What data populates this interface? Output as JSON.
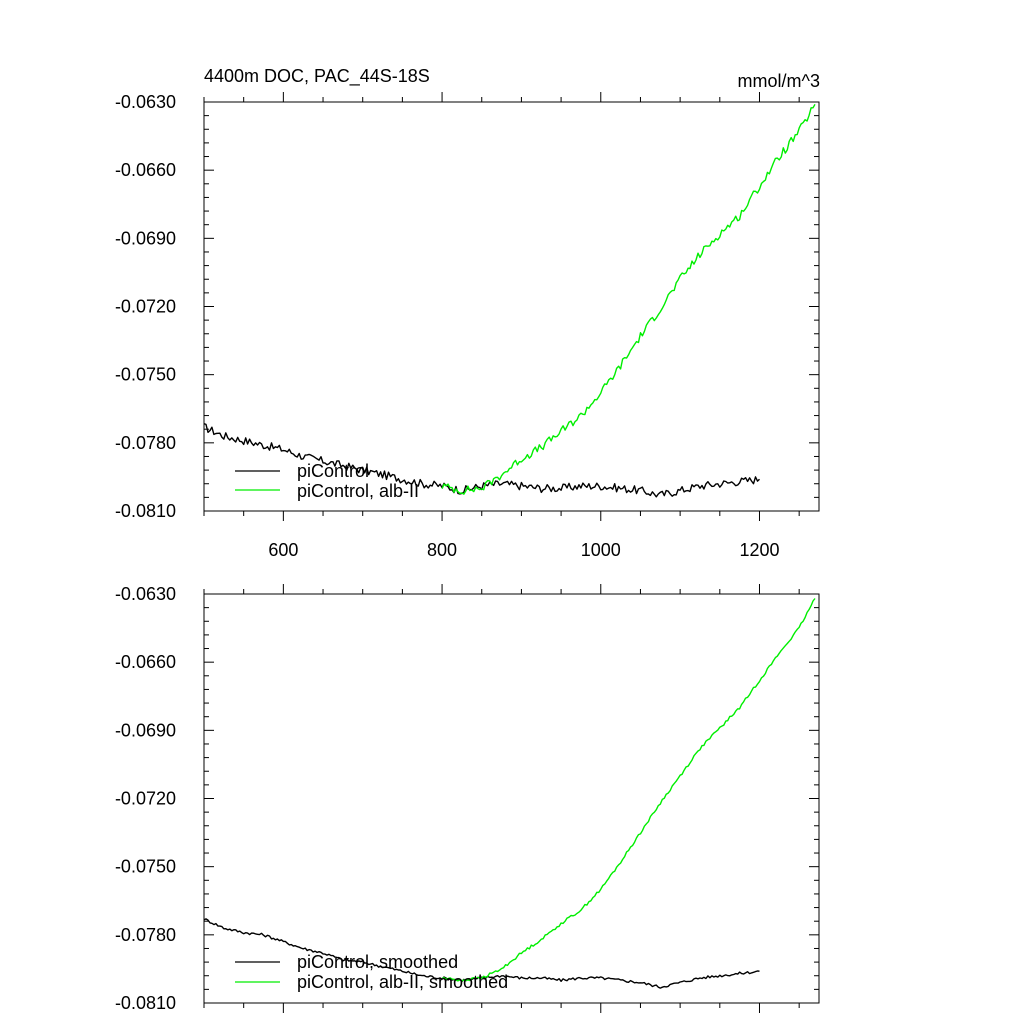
{
  "colors": {
    "control": "#000000",
    "alb": "#00ee00",
    "background": "#ffffff"
  },
  "chart_data": [
    {
      "type": "line",
      "title": "4400m DOC, PAC_44S-18S",
      "units": "mmol/m^3",
      "xlim": [
        500,
        1275
      ],
      "ylim": [
        -0.081,
        -0.063
      ],
      "x_ticks": [
        "600",
        "800",
        "1000",
        "1200"
      ],
      "y_ticks": [
        "-0.0630",
        "-0.0660",
        "-0.0690",
        "-0.0720",
        "-0.0750",
        "-0.0780",
        "-0.0810"
      ],
      "grid": false,
      "legend_position": "bottom-left",
      "series": [
        {
          "name": "piControl",
          "color": "#000000",
          "x": [
            500,
            525,
            550,
            575,
            600,
            625,
            650,
            675,
            700,
            725,
            750,
            775,
            800,
            825,
            850,
            875,
            900,
            925,
            950,
            975,
            1000,
            1025,
            1050,
            1075,
            1100,
            1125,
            1150,
            1175,
            1200
          ],
          "y": [
            -0.0773,
            -0.0777,
            -0.0779,
            -0.0781,
            -0.0783,
            -0.0786,
            -0.0788,
            -0.079,
            -0.0792,
            -0.0794,
            -0.0796,
            -0.0798,
            -0.0799,
            -0.0801,
            -0.0799,
            -0.0798,
            -0.0799,
            -0.08,
            -0.08,
            -0.0799,
            -0.0799,
            -0.08,
            -0.0801,
            -0.0803,
            -0.0801,
            -0.0799,
            -0.0798,
            -0.0797,
            -0.0796
          ],
          "noise": 0.00018
        },
        {
          "name": "piControl, alb-II",
          "color": "#00ee00",
          "x": [
            800,
            825,
            850,
            875,
            900,
            925,
            950,
            975,
            1000,
            1025,
            1050,
            1075,
            1100,
            1125,
            1150,
            1175,
            1200,
            1225,
            1250,
            1270
          ],
          "y": [
            -0.0799,
            -0.0801,
            -0.08,
            -0.0794,
            -0.0787,
            -0.0782,
            -0.0775,
            -0.0768,
            -0.0758,
            -0.0746,
            -0.0733,
            -0.0721,
            -0.0708,
            -0.0697,
            -0.0688,
            -0.068,
            -0.0667,
            -0.0654,
            -0.0643,
            -0.0631
          ],
          "noise": 0.00018
        }
      ]
    },
    {
      "type": "line",
      "title": "",
      "units": "",
      "xlim": [
        500,
        1275
      ],
      "ylim": [
        -0.081,
        -0.063
      ],
      "x_ticks": [],
      "y_ticks": [
        "-0.0630",
        "-0.0660",
        "-0.0690",
        "-0.0720",
        "-0.0750",
        "-0.0780",
        "-0.0810"
      ],
      "grid": false,
      "legend_position": "bottom-left",
      "series": [
        {
          "name": "piControl, smoothed",
          "color": "#000000",
          "x": [
            500,
            525,
            550,
            575,
            600,
            625,
            650,
            675,
            700,
            725,
            750,
            775,
            800,
            825,
            850,
            875,
            900,
            925,
            950,
            975,
            1000,
            1025,
            1050,
            1075,
            1100,
            1125,
            1150,
            1175,
            1200
          ],
          "y": [
            -0.0773,
            -0.0777,
            -0.0779,
            -0.078,
            -0.0783,
            -0.0786,
            -0.0788,
            -0.0791,
            -0.0792,
            -0.0794,
            -0.0796,
            -0.0798,
            -0.0799,
            -0.08,
            -0.0799,
            -0.0798,
            -0.0799,
            -0.0799,
            -0.08,
            -0.0799,
            -0.0799,
            -0.08,
            -0.0801,
            -0.0803,
            -0.0801,
            -0.0799,
            -0.0798,
            -0.0797,
            -0.0796
          ],
          "noise": 6e-05
        },
        {
          "name": "piControl, alb-II, smoothed",
          "color": "#00ee00",
          "x": [
            800,
            825,
            850,
            875,
            900,
            925,
            950,
            975,
            1000,
            1025,
            1050,
            1075,
            1100,
            1125,
            1150,
            1175,
            1200,
            1225,
            1250,
            1270
          ],
          "y": [
            -0.0799,
            -0.08,
            -0.0799,
            -0.0795,
            -0.0788,
            -0.0782,
            -0.0775,
            -0.0769,
            -0.076,
            -0.0748,
            -0.0735,
            -0.0722,
            -0.071,
            -0.0698,
            -0.0689,
            -0.068,
            -0.0668,
            -0.0656,
            -0.0645,
            -0.0632
          ],
          "noise": 6e-05
        }
      ]
    }
  ]
}
